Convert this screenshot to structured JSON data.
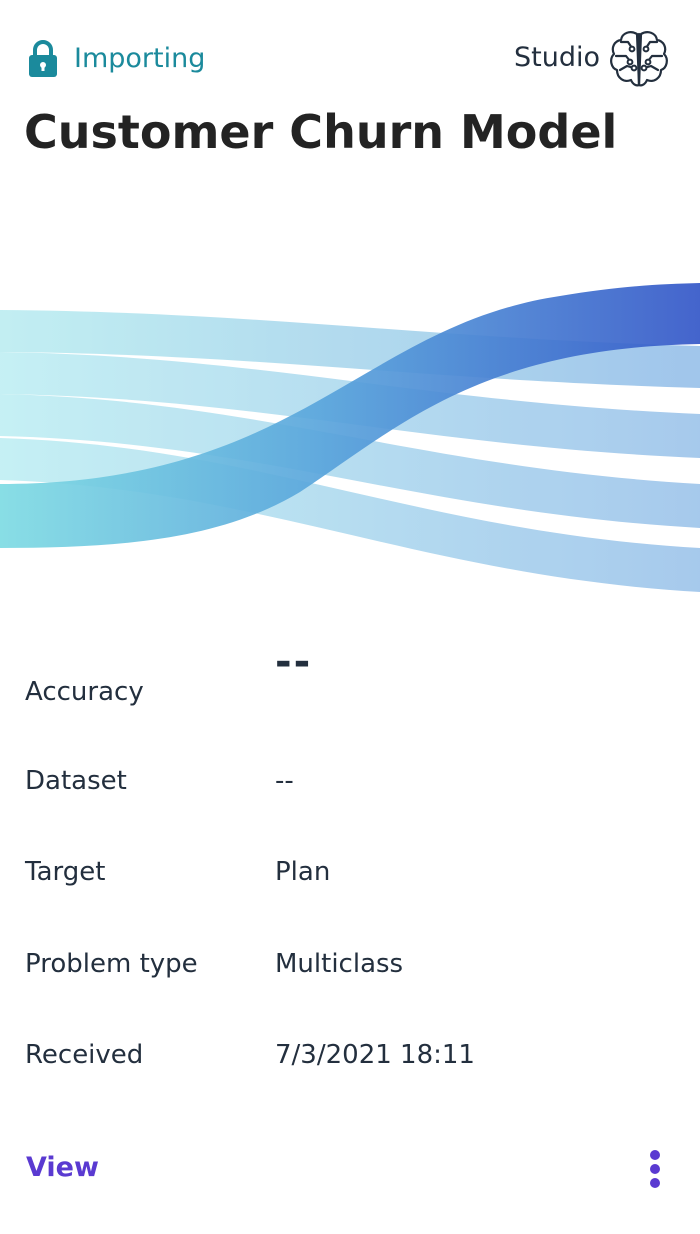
{
  "header": {
    "status_label": "Importing",
    "status_icon": "lock-icon",
    "source_label": "Studio",
    "source_icon": "brain-circuit-icon"
  },
  "title": "Customer Churn Model",
  "details": [
    {
      "label": "Accuracy",
      "value": "--"
    },
    {
      "label": "Dataset",
      "value": "--"
    },
    {
      "label": "Target",
      "value": "Plan"
    },
    {
      "label": "Problem type",
      "value": "Multiclass"
    },
    {
      "label": "Received",
      "value": "7/3/2021 18:11"
    }
  ],
  "footer": {
    "view_label": "View",
    "more_icon": "more-vertical-icon"
  },
  "colors": {
    "status": "#1b8a9c",
    "accent": "#5a3ad1",
    "text": "#232f3e"
  }
}
